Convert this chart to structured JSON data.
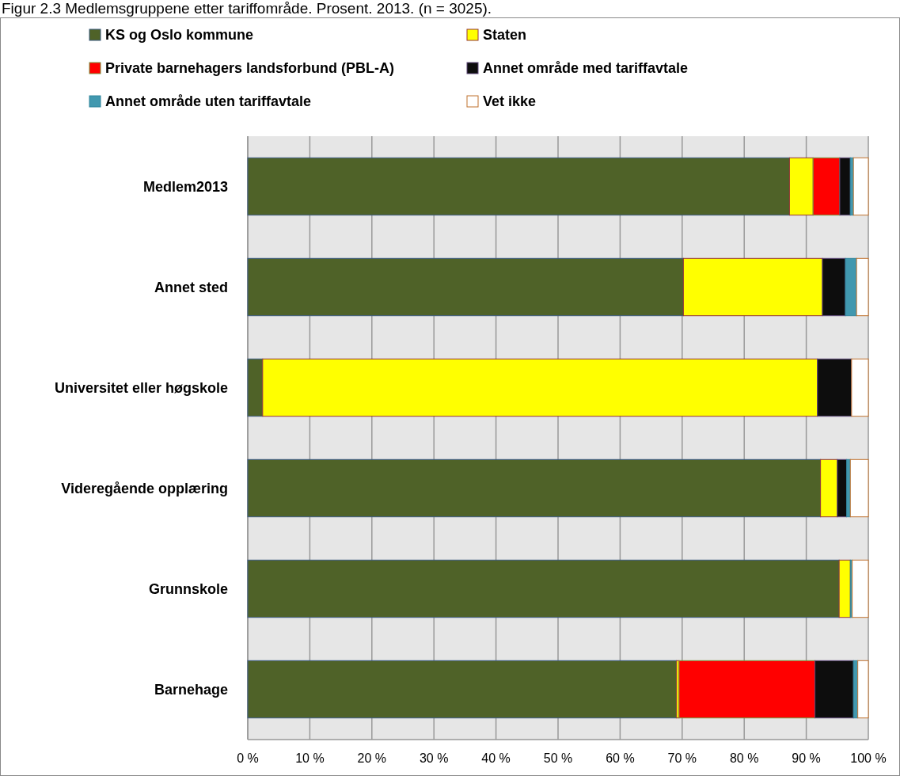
{
  "chart_data": {
    "type": "bar",
    "title": "Figur 2.3 Medlemsgruppene etter tariffområde. Prosent. 2013. (n = 3025).",
    "orientation": "horizontal",
    "stacked": true,
    "categories": [
      "Medlem2013",
      "Annet sted",
      "Universitet eller høgskole",
      "Videregående opplæring",
      "Grunnskole",
      "Barnehage"
    ],
    "series": [
      {
        "name": "KS og Oslo kommune",
        "color": "#4f6228",
        "values": [
          87.3,
          70.2,
          2.4,
          92.3,
          95.3,
          69.1
        ]
      },
      {
        "name": "Staten",
        "color": "#ffff00",
        "values": [
          3.8,
          22.4,
          89.4,
          2.7,
          1.8,
          0.4
        ]
      },
      {
        "name": "Private barnehagers landsforbund (PBL-A)",
        "color": "#ff0000",
        "values": [
          4.3,
          0,
          0,
          0,
          0,
          21.9
        ]
      },
      {
        "name": "Annet område med tariffavtale",
        "color": "#0d0d0d",
        "values": [
          1.7,
          3.7,
          5.5,
          1.5,
          0,
          6.2
        ]
      },
      {
        "name": "Annet område uten tariffavtale",
        "color": "#4198af",
        "values": [
          0.5,
          1.8,
          0,
          0.6,
          0.3,
          0.7
        ]
      },
      {
        "name": "Vet ikke",
        "color": "#ffffff",
        "values": [
          2.4,
          1.9,
          2.7,
          2.9,
          2.6,
          1.7
        ]
      }
    ],
    "xlim": [
      0,
      100
    ],
    "xticks": [
      {
        "value": 0,
        "label": "0 %"
      },
      {
        "value": 10,
        "label": "10 %"
      },
      {
        "value": 20,
        "label": "20 %"
      },
      {
        "value": 30,
        "label": "30 %"
      },
      {
        "value": 40,
        "label": "40 %"
      },
      {
        "value": 50,
        "label": "50 %"
      },
      {
        "value": 60,
        "label": "60 %"
      },
      {
        "value": 70,
        "label": "70 %"
      },
      {
        "value": 80,
        "label": "80 %"
      },
      {
        "value": 90,
        "label": "90 %"
      },
      {
        "value": 100,
        "label": "100 %"
      }
    ],
    "grid": "x",
    "legend": "top"
  }
}
